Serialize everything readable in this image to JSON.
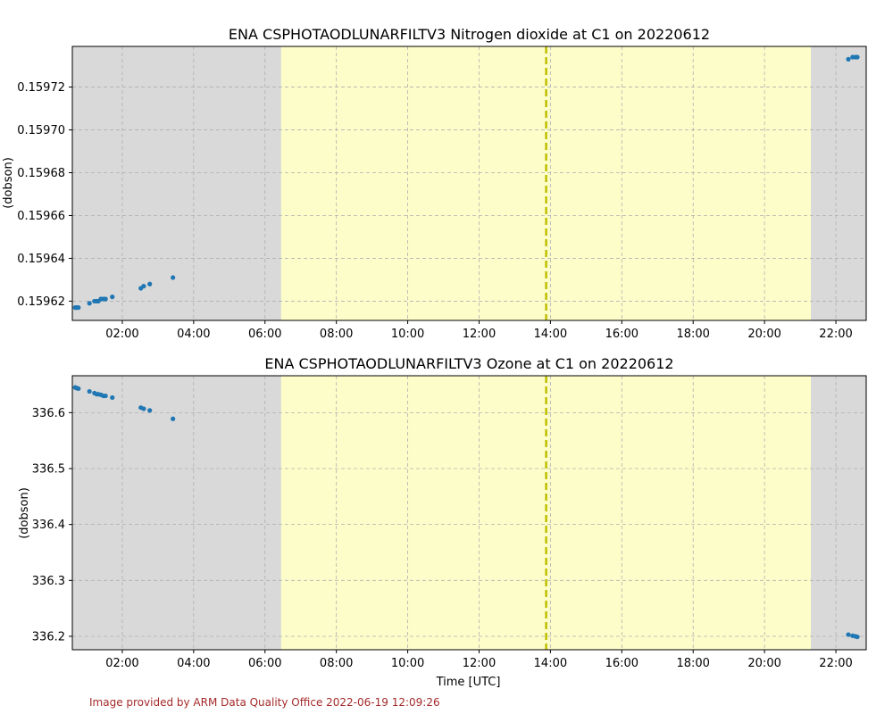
{
  "colors": {
    "night": "#d9d9d9",
    "day": "#fdfdca",
    "marker": "#1f77b4",
    "noon_line": "#bfbf00",
    "grid": "#b0b0b0",
    "footer": "#a52a2a"
  },
  "footer": "Image provided by ARM Data Quality Office 2022-06-19 12:09:26",
  "chart_data": [
    {
      "type": "scatter",
      "title": "ENA CSPHOTAODLUNARFILTV3 Nitrogen dioxide at C1 on 20220612",
      "xlabel": "",
      "ylabel": "(dobson)",
      "grid": true,
      "xlim": [
        0.6,
        22.85
      ],
      "ylim": [
        0.159611,
        0.159739
      ],
      "x_ticks": [
        2,
        4,
        6,
        8,
        10,
        12,
        14,
        16,
        18,
        20,
        22
      ],
      "x_tick_labels": [
        "02:00",
        "04:00",
        "06:00",
        "08:00",
        "10:00",
        "12:00",
        "14:00",
        "16:00",
        "18:00",
        "20:00",
        "22:00"
      ],
      "y_ticks": [
        0.15962,
        0.15964,
        0.15966,
        0.15968,
        0.1597,
        0.15972
      ],
      "y_tick_labels": [
        "0.15962",
        "0.15964",
        "0.15966",
        "0.15968",
        "0.15970",
        "0.15972"
      ],
      "day_range": [
        6.45,
        21.3
      ],
      "noon_line": 13.88,
      "x": [
        0.68,
        0.72,
        0.77,
        1.08,
        1.22,
        1.28,
        1.33,
        1.4,
        1.47,
        1.53,
        1.72,
        2.52,
        2.6,
        2.77,
        3.42,
        22.35,
        22.47,
        22.55,
        22.6
      ],
      "y": [
        0.159617,
        0.159617,
        0.159617,
        0.159619,
        0.15962,
        0.15962,
        0.15962,
        0.159621,
        0.159621,
        0.159621,
        0.159622,
        0.159626,
        0.159627,
        0.159628,
        0.159631,
        0.159733,
        0.159734,
        0.159734,
        0.159734
      ]
    },
    {
      "type": "scatter",
      "title": "ENA CSPHOTAODLUNARFILTV3 Ozone at C1 on 20220612",
      "xlabel": "Time [UTC]",
      "ylabel": "(dobson)",
      "grid": true,
      "xlim": [
        0.6,
        22.85
      ],
      "ylim": [
        336.176,
        336.666
      ],
      "x_ticks": [
        2,
        4,
        6,
        8,
        10,
        12,
        14,
        16,
        18,
        20,
        22
      ],
      "x_tick_labels": [
        "02:00",
        "04:00",
        "06:00",
        "08:00",
        "10:00",
        "12:00",
        "14:00",
        "16:00",
        "18:00",
        "20:00",
        "22:00"
      ],
      "y_ticks": [
        336.2,
        336.3,
        336.4,
        336.5,
        336.6
      ],
      "y_tick_labels": [
        "336.2",
        "336.3",
        "336.4",
        "336.5",
        "336.6"
      ],
      "day_range": [
        6.45,
        21.3
      ],
      "noon_line": 13.88,
      "x": [
        0.68,
        0.72,
        0.77,
        1.08,
        1.22,
        1.28,
        1.33,
        1.4,
        1.47,
        1.53,
        1.72,
        2.52,
        2.6,
        2.77,
        3.42,
        22.35,
        22.47,
        22.55,
        22.6
      ],
      "y": [
        336.645,
        336.644,
        336.643,
        336.638,
        336.635,
        336.633,
        336.633,
        336.632,
        336.63,
        336.63,
        336.627,
        336.609,
        336.607,
        336.604,
        336.589,
        336.203,
        336.201,
        336.2,
        336.199
      ]
    }
  ]
}
